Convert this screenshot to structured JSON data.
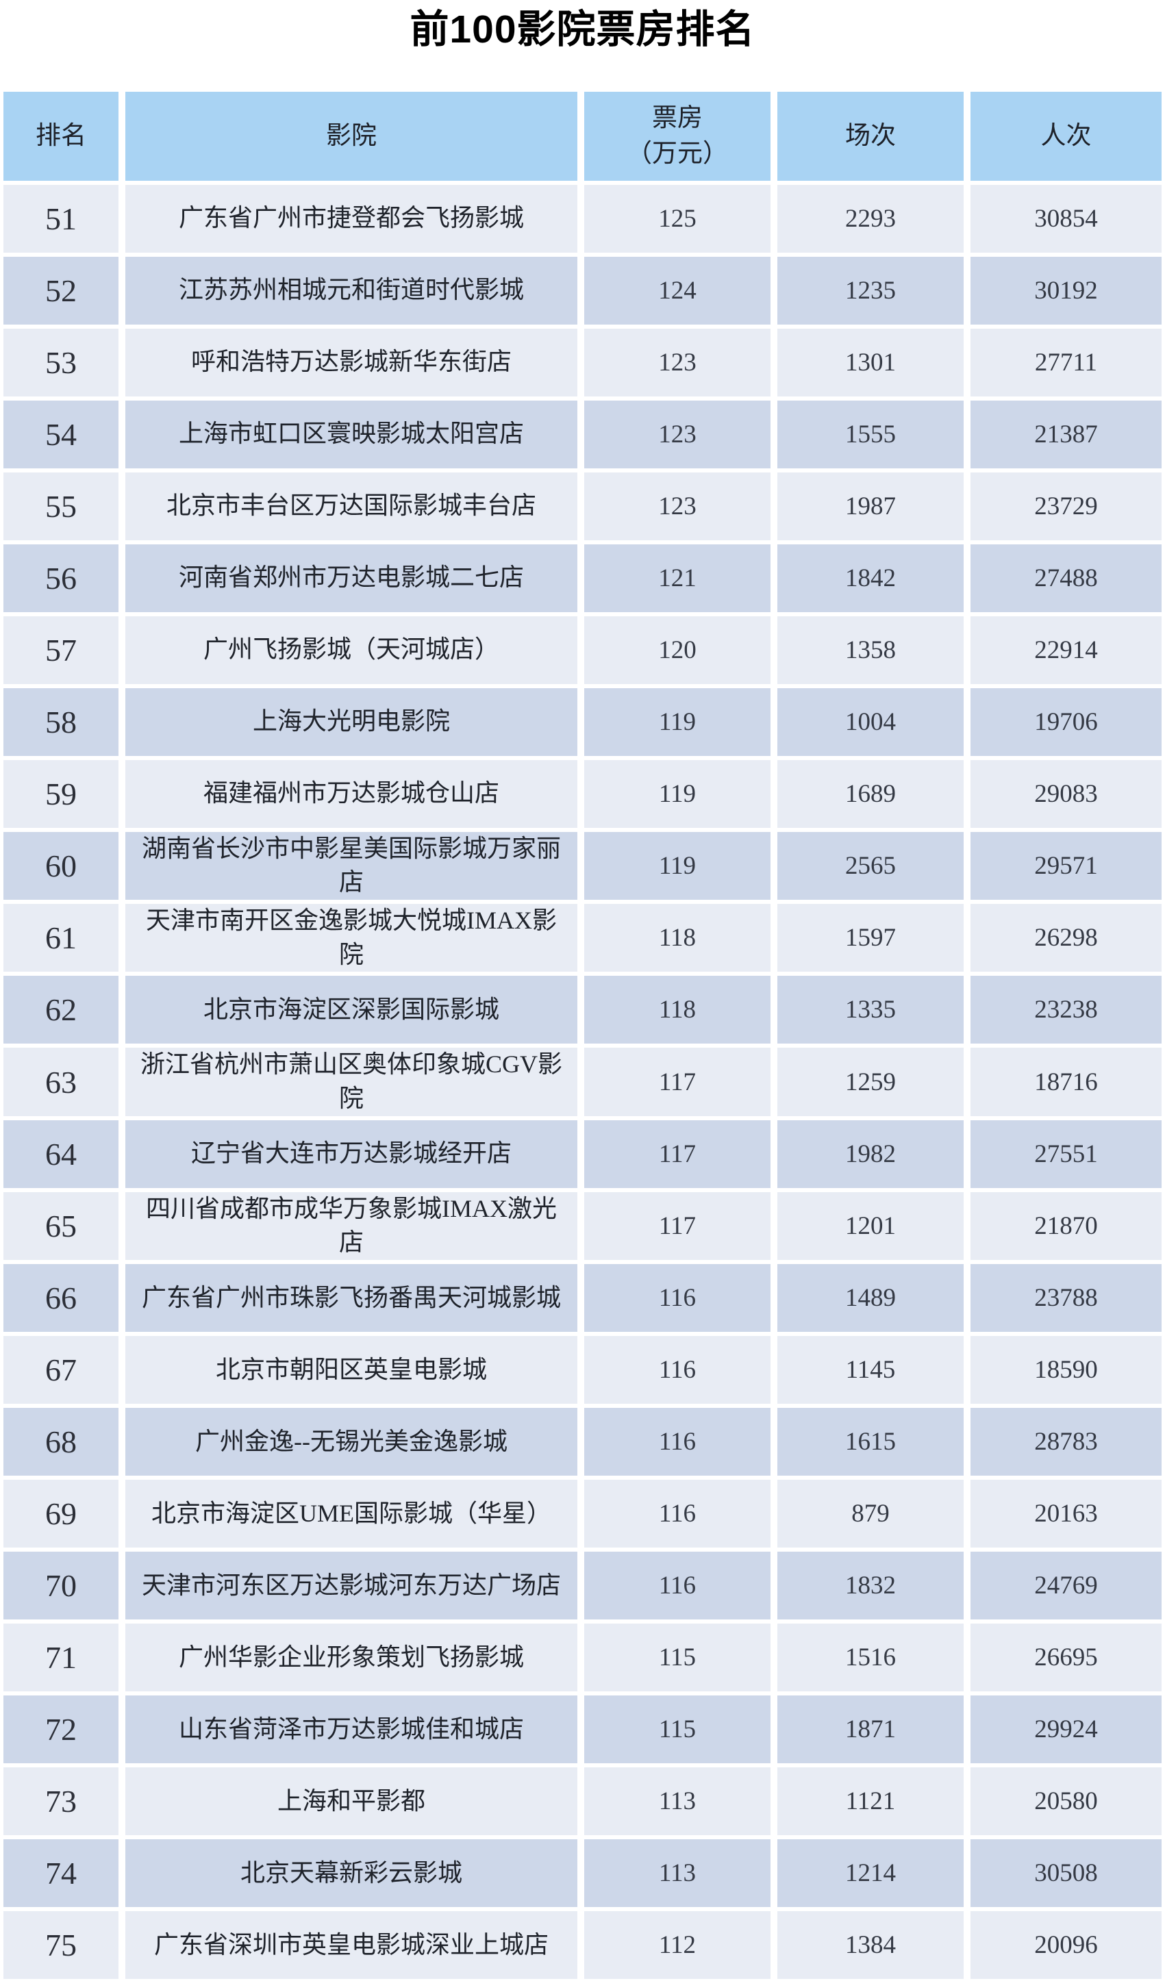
{
  "title": "前100影院票房排名",
  "table": {
    "headers": {
      "rank": "排名",
      "cinema": "影院",
      "box_office": "票房\n（万元）",
      "screenings": "场次",
      "admissions": "人次"
    },
    "rows": [
      {
        "rank": "51",
        "cinema": "广东省广州市捷登都会飞扬影城",
        "box_office": "125",
        "screenings": "2293",
        "admissions": "30854"
      },
      {
        "rank": "52",
        "cinema": "江苏苏州相城元和街道时代影城",
        "box_office": "124",
        "screenings": "1235",
        "admissions": "30192"
      },
      {
        "rank": "53",
        "cinema": "呼和浩特万达影城新华东街店",
        "box_office": "123",
        "screenings": "1301",
        "admissions": "27711"
      },
      {
        "rank": "54",
        "cinema": "上海市虹口区寰映影城太阳宫店",
        "box_office": "123",
        "screenings": "1555",
        "admissions": "21387"
      },
      {
        "rank": "55",
        "cinema": "北京市丰台区万达国际影城丰台店",
        "box_office": "123",
        "screenings": "1987",
        "admissions": "23729"
      },
      {
        "rank": "56",
        "cinema": "河南省郑州市万达电影城二七店",
        "box_office": "121",
        "screenings": "1842",
        "admissions": "27488"
      },
      {
        "rank": "57",
        "cinema": "广州飞扬影城（天河城店）",
        "box_office": "120",
        "screenings": "1358",
        "admissions": "22914"
      },
      {
        "rank": "58",
        "cinema": "上海大光明电影院",
        "box_office": "119",
        "screenings": "1004",
        "admissions": "19706"
      },
      {
        "rank": "59",
        "cinema": "福建福州市万达影城仓山店",
        "box_office": "119",
        "screenings": "1689",
        "admissions": "29083"
      },
      {
        "rank": "60",
        "cinema": "湖南省长沙市中影星美国际影城万家丽\n店",
        "box_office": "119",
        "screenings": "2565",
        "admissions": "29571"
      },
      {
        "rank": "61",
        "cinema": "天津市南开区金逸影城大悦城IMAX影院",
        "box_office": "118",
        "screenings": "1597",
        "admissions": "26298"
      },
      {
        "rank": "62",
        "cinema": "北京市海淀区深影国际影城",
        "box_office": "118",
        "screenings": "1335",
        "admissions": "23238"
      },
      {
        "rank": "63",
        "cinema": "浙江省杭州市萧山区奥体印象城CGV影院",
        "box_office": "117",
        "screenings": "1259",
        "admissions": "18716"
      },
      {
        "rank": "64",
        "cinema": "辽宁省大连市万达影城经开店",
        "box_office": "117",
        "screenings": "1982",
        "admissions": "27551"
      },
      {
        "rank": "65",
        "cinema": "四川省成都市成华万象影城IMAX激光店",
        "box_office": "117",
        "screenings": "1201",
        "admissions": "21870"
      },
      {
        "rank": "66",
        "cinema": "广东省广州市珠影飞扬番禺天河城影城",
        "box_office": "116",
        "screenings": "1489",
        "admissions": "23788"
      },
      {
        "rank": "67",
        "cinema": "北京市朝阳区英皇电影城",
        "box_office": "116",
        "screenings": "1145",
        "admissions": "18590"
      },
      {
        "rank": "68",
        "cinema": "广州金逸--无锡光美金逸影城",
        "box_office": "116",
        "screenings": "1615",
        "admissions": "28783"
      },
      {
        "rank": "69",
        "cinema": "北京市海淀区UME国际影城（华星）",
        "box_office": "116",
        "screenings": "879",
        "admissions": "20163"
      },
      {
        "rank": "70",
        "cinema": "天津市河东区万达影城河东万达广场店",
        "box_office": "116",
        "screenings": "1832",
        "admissions": "24769"
      },
      {
        "rank": "71",
        "cinema": "广州华影企业形象策划飞扬影城",
        "box_office": "115",
        "screenings": "1516",
        "admissions": "26695"
      },
      {
        "rank": "72",
        "cinema": "山东省菏泽市万达影城佳和城店",
        "box_office": "115",
        "screenings": "1871",
        "admissions": "29924"
      },
      {
        "rank": "73",
        "cinema": "上海和平影都",
        "box_office": "113",
        "screenings": "1121",
        "admissions": "20580"
      },
      {
        "rank": "74",
        "cinema": "北京天幕新彩云影城",
        "box_office": "113",
        "screenings": "1214",
        "admissions": "30508"
      },
      {
        "rank": "75",
        "cinema": "广东省深圳市英皇电影城深业上城店",
        "box_office": "112",
        "screenings": "1384",
        "admissions": "20096"
      }
    ]
  },
  "colors": {
    "header_bg": "#a9d3f3",
    "row_odd_bg": "#e8ecf4",
    "row_even_bg": "#cdd7e9",
    "grid_line": "#ffffff",
    "title_color": "#000000",
    "text_color": "#23262e"
  }
}
